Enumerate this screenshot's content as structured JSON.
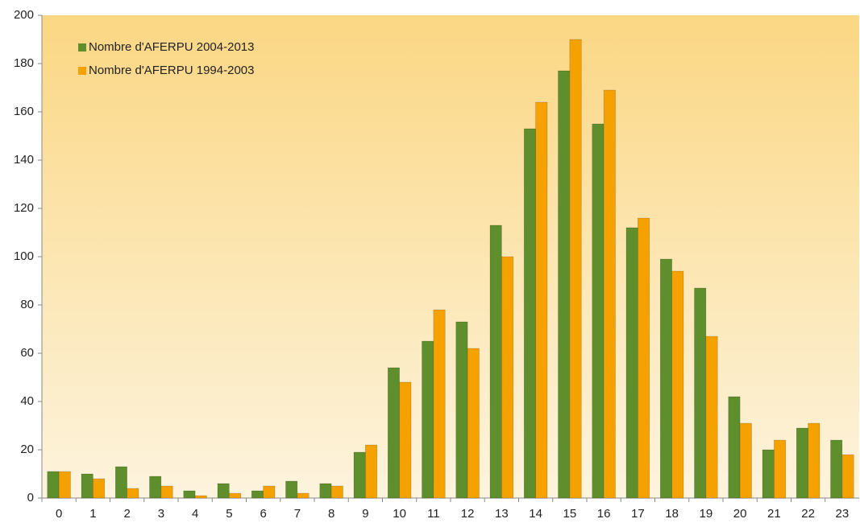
{
  "chart_data": {
    "type": "bar",
    "categories": [
      "0",
      "1",
      "2",
      "3",
      "4",
      "5",
      "6",
      "7",
      "8",
      "9",
      "10",
      "11",
      "12",
      "13",
      "14",
      "15",
      "16",
      "17",
      "18",
      "19",
      "20",
      "21",
      "22",
      "23"
    ],
    "series": [
      {
        "name": "Nombre d'AFERPU 2004-2013",
        "color": "#5e8f2c",
        "values": [
          11,
          10,
          13,
          9,
          3,
          6,
          3,
          7,
          6,
          19,
          54,
          65,
          73,
          113,
          153,
          177,
          155,
          112,
          99,
          87,
          42,
          20,
          29,
          24
        ]
      },
      {
        "name": "Nombre d'AFERPU 1994-2003",
        "color": "#f5a100",
        "values": [
          11,
          8,
          4,
          5,
          1,
          2,
          5,
          2,
          5,
          22,
          48,
          78,
          62,
          100,
          164,
          190,
          169,
          116,
          94,
          67,
          31,
          24,
          31,
          18
        ]
      }
    ],
    "ylim": [
      0,
      200
    ],
    "yticks": [
      0,
      20,
      40,
      60,
      80,
      100,
      120,
      140,
      160,
      180,
      200
    ],
    "grid": false,
    "legend": "top-left"
  }
}
